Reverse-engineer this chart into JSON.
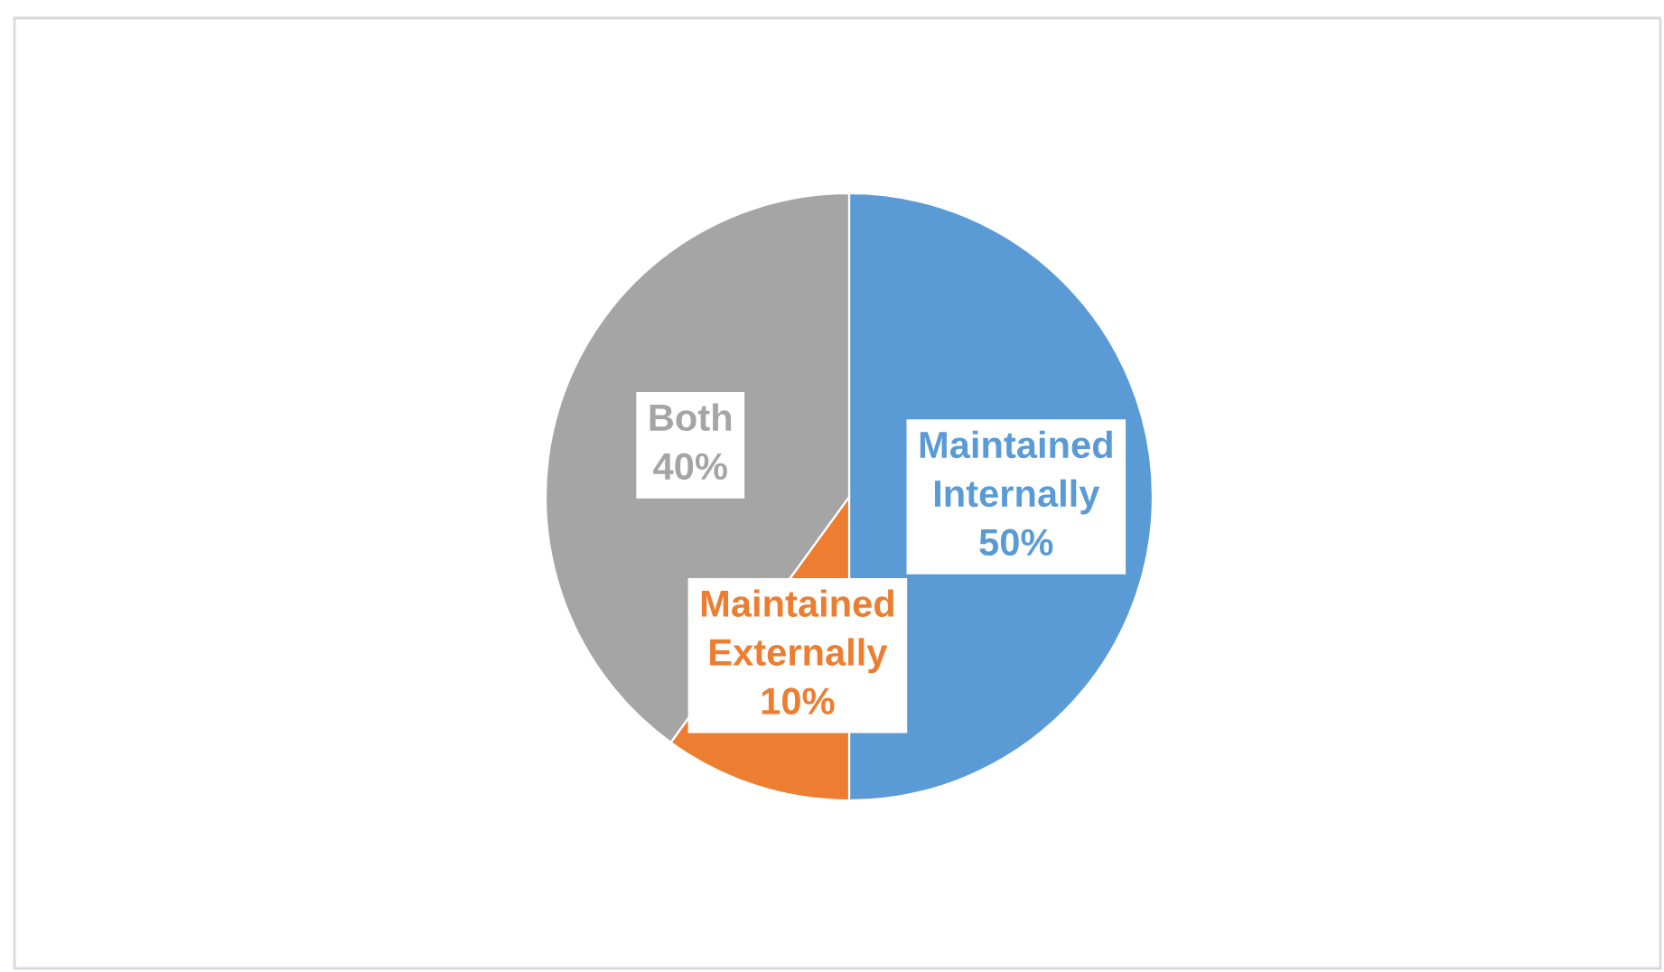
{
  "chart_data": {
    "type": "pie",
    "categories": [
      "Maintained\nInternally",
      "Maintained\nExternally",
      "Both"
    ],
    "values": [
      50,
      10,
      40
    ],
    "colors": [
      "#5b9bd5",
      "#ed7d31",
      "#a5a5a5"
    ],
    "value_labels": [
      "50%",
      "10%",
      "40%"
    ]
  }
}
